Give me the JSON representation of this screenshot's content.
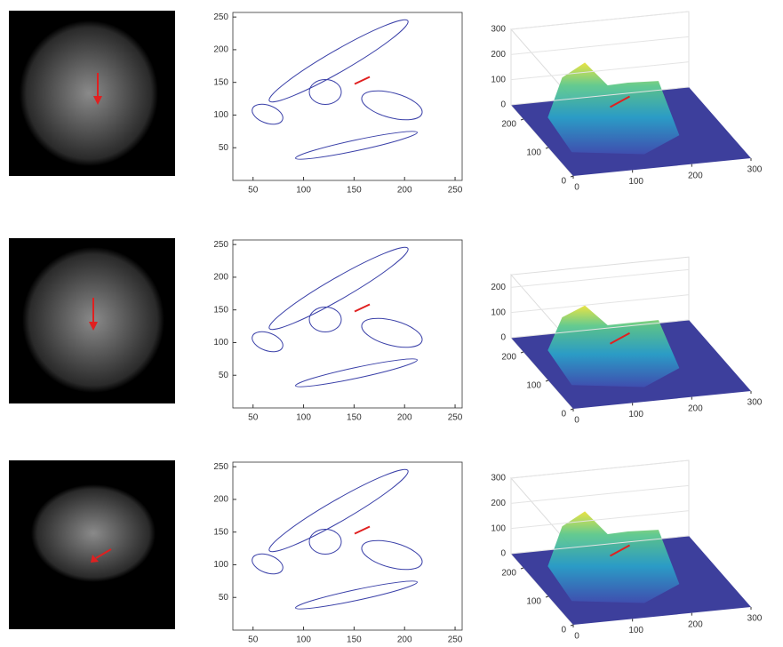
{
  "chart_data": [
    {
      "type": "contour",
      "xlim": [
        30,
        257
      ],
      "ylim": [
        0,
        257
      ],
      "xticks": [
        50,
        100,
        150,
        200,
        250
      ],
      "yticks": [
        50,
        100,
        150,
        200,
        250
      ]
    },
    {
      "type": "surface",
      "xlim": [
        0,
        300
      ],
      "ylim": [
        0,
        250
      ],
      "zlim": [
        0,
        300
      ],
      "xticks": [
        0,
        100,
        200,
        300
      ],
      "yticks": [
        0,
        100,
        200
      ],
      "zticks": [
        0,
        100,
        200,
        300
      ]
    },
    {
      "type": "contour",
      "xlim": [
        30,
        257
      ],
      "ylim": [
        0,
        257
      ],
      "xticks": [
        50,
        100,
        150,
        200,
        250
      ],
      "yticks": [
        50,
        100,
        150,
        200,
        250
      ]
    },
    {
      "type": "surface",
      "xlim": [
        0,
        300
      ],
      "ylim": [
        0,
        250
      ],
      "zlim": [
        0,
        250
      ],
      "xticks": [
        0,
        100,
        200,
        300
      ],
      "yticks": [
        0,
        100,
        200
      ],
      "zticks": [
        0,
        100,
        200
      ]
    },
    {
      "type": "contour",
      "xlim": [
        30,
        257
      ],
      "ylim": [
        0,
        257
      ],
      "xticks": [
        50,
        100,
        150,
        200,
        250
      ],
      "yticks": [
        50,
        100,
        150,
        200,
        250
      ]
    },
    {
      "type": "surface",
      "xlim": [
        0,
        300
      ],
      "ylim": [
        0,
        250
      ],
      "zlim": [
        0,
        300
      ],
      "xticks": [
        0,
        100,
        200,
        300
      ],
      "yticks": [
        0,
        100,
        200
      ],
      "zticks": [
        0,
        100,
        200,
        300
      ]
    }
  ]
}
